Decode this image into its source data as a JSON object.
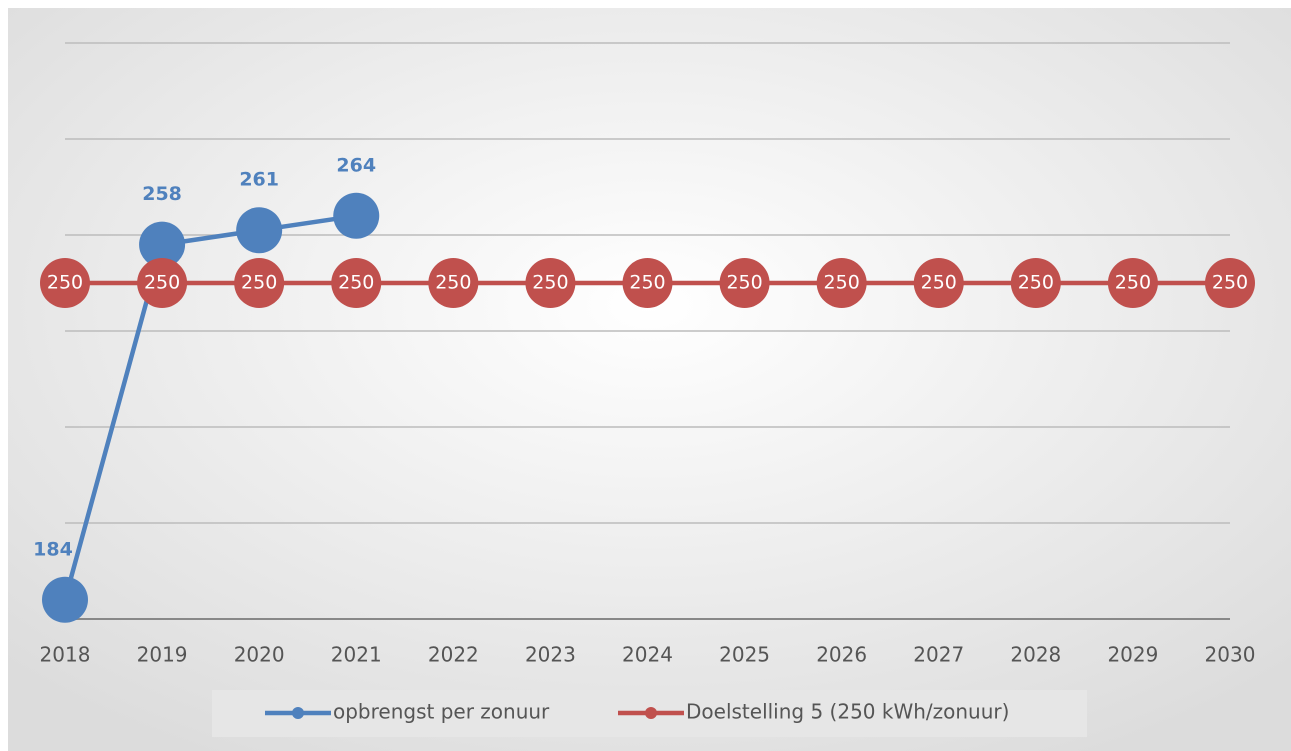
{
  "chart_data": {
    "type": "line",
    "categories": [
      "2018",
      "2019",
      "2020",
      "2021",
      "2022",
      "2023",
      "2024",
      "2025",
      "2026",
      "2027",
      "2028",
      "2029",
      "2030"
    ],
    "series": [
      {
        "name": "opbrengst per zonuur",
        "color": "#4f81bd",
        "values": [
          184,
          258,
          261,
          264,
          null,
          null,
          null,
          null,
          null,
          null,
          null,
          null,
          null
        ]
      },
      {
        "name": "Doelstelling 5 (250 kWh/zonuur)",
        "color": "#c0504d",
        "values": [
          250,
          250,
          250,
          250,
          250,
          250,
          250,
          250,
          250,
          250,
          250,
          250,
          250
        ]
      }
    ],
    "ylim": [
      180,
      300
    ],
    "yticks": [
      180,
      200,
      220,
      240,
      260,
      280,
      300
    ],
    "grid": true,
    "legend": "bottom"
  }
}
